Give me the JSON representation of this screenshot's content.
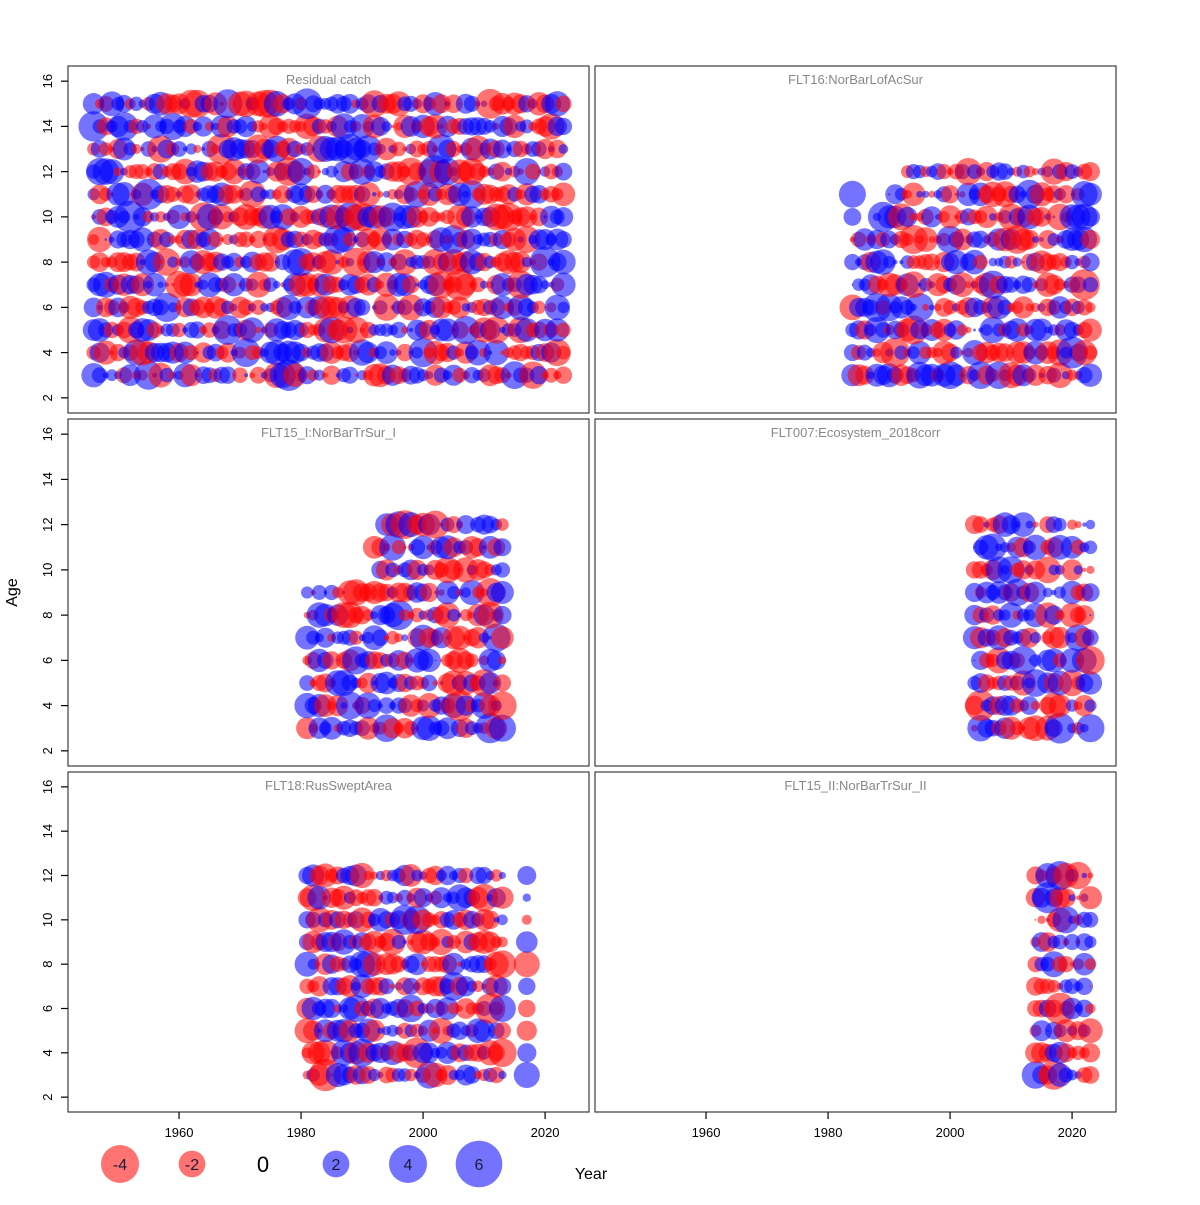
{
  "figure": {
    "xlabel": "Year",
    "ylabel": "Age",
    "x_ticks": [
      "1960",
      "1980",
      "2000",
      "2020"
    ],
    "x_tick_years": [
      1960,
      1980,
      2000,
      2020
    ],
    "y_ticks": [
      "2",
      "4",
      "6",
      "8",
      "10",
      "12",
      "14",
      "16"
    ],
    "y_tick_ages": [
      2,
      4,
      6,
      8,
      10,
      12,
      14,
      16
    ]
  },
  "chart_data": {
    "type": "bubble",
    "description": "Lattice of age-by-year residual bubble plots for catch and survey fleets; red = negative residual, blue = positive residual, circle area scales with |residual|.",
    "xlim": [
      1941.8,
      2027.2
    ],
    "ylim": [
      1.33,
      16.67
    ],
    "value_encoding": "r_px = 9.5 * sqrt(|residual|); negative residuals red, positive blue, alpha blended",
    "seed": 7,
    "panels": [
      {
        "id": "residual-catch",
        "title": "Residual catch",
        "col": 0,
        "row": 0,
        "row_groups": [
          {
            "age_from": 3,
            "age_to": 15,
            "segments": [
              [
                1946,
                2023
              ]
            ]
          }
        ]
      },
      {
        "id": "flt16-norbarlofacsur",
        "title": "FLT16:NorBarLofAcSur",
        "col": 1,
        "row": 0,
        "row_groups": [
          {
            "age_from": 3,
            "age_to": 9,
            "segments": [
              [
                1984,
                2023
              ]
            ]
          },
          {
            "age_from": 10,
            "age_to": 10,
            "segments": [
              [
                1984,
                1984
              ],
              [
                1988,
                2023
              ]
            ]
          },
          {
            "age_from": 11,
            "age_to": 11,
            "segments": [
              [
                1984,
                1984
              ],
              [
                1990,
                2023
              ]
            ]
          },
          {
            "age_from": 12,
            "age_to": 12,
            "segments": [
              [
                1993,
                2023
              ]
            ]
          }
        ]
      },
      {
        "id": "flt15-i-norbartrsur-i",
        "title": "FLT15_I:NorBarTrSur_I",
        "col": 0,
        "row": 1,
        "row_groups": [
          {
            "age_from": 3,
            "age_to": 9,
            "segments": [
              [
                1981,
                2013
              ]
            ]
          },
          {
            "age_from": 10,
            "age_to": 10,
            "segments": [
              [
                1993,
                2013
              ]
            ]
          },
          {
            "age_from": 11,
            "age_to": 11,
            "segments": [
              [
                1992,
                2013
              ]
            ]
          },
          {
            "age_from": 12,
            "age_to": 12,
            "segments": [
              [
                1994,
                2013
              ]
            ]
          }
        ]
      },
      {
        "id": "flt007-ecosystem-2018corr",
        "title": "FLT007:Ecosystem_2018corr",
        "col": 1,
        "row": 1,
        "row_groups": [
          {
            "age_from": 3,
            "age_to": 12,
            "segments": [
              [
                2004,
                2014
              ],
              [
                2016,
                2018
              ],
              [
                2020,
                2023
              ]
            ]
          }
        ]
      },
      {
        "id": "flt18-russweptarea",
        "title": "FLT18:RusSweptArea",
        "col": 0,
        "row": 2,
        "row_groups": [
          {
            "age_from": 3,
            "age_to": 12,
            "segments": [
              [
                1981,
                2013
              ],
              [
                2017,
                2017
              ]
            ]
          }
        ]
      },
      {
        "id": "flt15-ii-norbartrsur-ii",
        "title": "FLT15_II:NorBarTrSur_II",
        "col": 1,
        "row": 2,
        "row_groups": [
          {
            "age_from": 3,
            "age_to": 12,
            "segments": [
              [
                2014,
                2023
              ]
            ]
          }
        ]
      }
    ],
    "legend": {
      "values": [
        -4,
        -2,
        0,
        2,
        4,
        6
      ],
      "labels": [
        "-4",
        "-2",
        "0",
        "2",
        "4",
        "6"
      ],
      "x_centers": [
        120,
        192,
        263,
        336,
        408,
        479
      ],
      "y_center": 1164
    },
    "colors": {
      "negative": "#FF0000",
      "positive": "#0000FF",
      "bubble_alpha": 0.55,
      "panel_title": "#888888",
      "axis_text": "#000000",
      "legend_label": "#1b1b35",
      "panel_border": "#3c3c3c"
    }
  }
}
